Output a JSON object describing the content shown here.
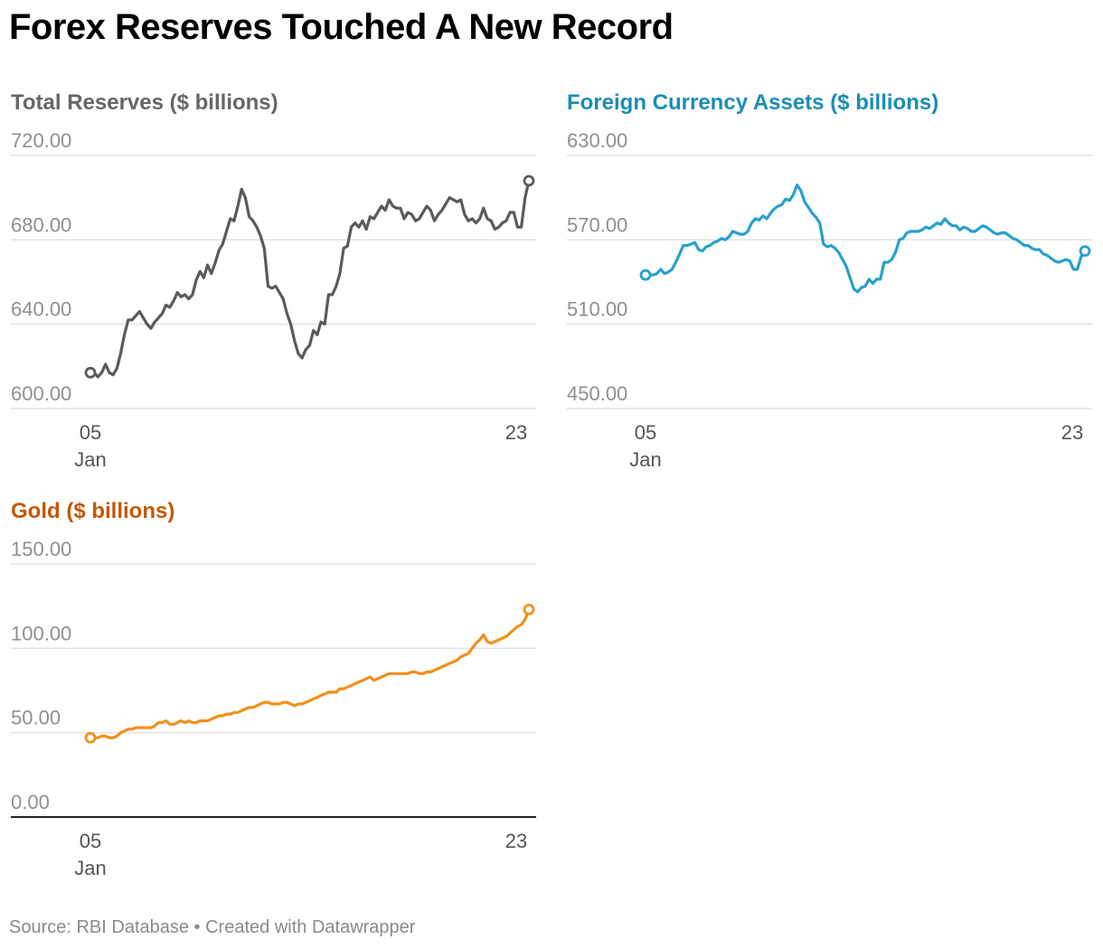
{
  "title": "Forex Reserves Touched A New Record",
  "source": "Source: RBI Database • Created with Datawrapper",
  "chart_data": [
    {
      "type": "line",
      "title": "Total Reserves ($ billions)",
      "color": "#5a5a5a",
      "title_color": "#666666",
      "x_tick_labels": [
        "05",
        "23"
      ],
      "x_tick_sublabels": [
        "Jan",
        ""
      ],
      "y_ticks": [
        600,
        640,
        680,
        720
      ],
      "y_tick_labels": [
        "600.00",
        "640.00",
        "680.00",
        "720.00"
      ],
      "ylim": [
        600,
        720
      ],
      "baseline": "grid",
      "values": [
        617,
        617,
        615,
        617,
        621,
        617,
        616,
        619,
        626,
        635,
        642,
        642,
        644,
        646,
        643,
        640,
        638,
        641,
        643,
        645,
        649,
        648,
        651,
        655,
        653,
        654,
        652,
        654,
        661,
        665,
        662,
        668,
        664,
        669,
        675,
        678,
        684,
        690,
        689,
        696,
        704,
        700,
        691,
        689,
        686,
        682,
        676,
        658,
        657,
        658,
        655,
        652,
        645,
        640,
        632,
        626,
        624,
        628,
        630,
        637,
        635,
        641,
        640,
        654,
        654,
        658,
        664,
        676,
        677,
        686,
        688,
        686,
        689,
        685,
        691,
        690,
        693,
        696,
        694,
        699,
        696,
        695,
        695,
        690,
        693,
        692,
        689,
        690,
        693,
        696,
        694,
        689,
        692,
        694,
        697,
        700,
        699,
        698,
        699,
        692,
        689,
        690,
        688,
        690,
        695,
        690,
        689,
        685,
        686,
        688,
        689,
        693,
        693,
        686,
        686,
        700,
        708
      ]
    },
    {
      "type": "line",
      "title": "Foreign Currency Assets ($ billions)",
      "color": "#27a0cc",
      "title_color": "#1a8db3",
      "x_tick_labels": [
        "05",
        "23"
      ],
      "x_tick_sublabels": [
        "Jan",
        ""
      ],
      "y_ticks": [
        450,
        510,
        570,
        630
      ],
      "y_tick_labels": [
        "450.00",
        "510.00",
        "570.00",
        "630.00"
      ],
      "ylim": [
        450,
        630
      ],
      "baseline": "grid",
      "values": [
        545,
        545,
        545,
        546,
        549,
        546,
        547,
        549,
        554,
        560,
        566,
        566,
        567,
        568,
        563,
        562,
        565,
        566,
        568,
        569,
        571,
        570,
        572,
        576,
        575,
        574,
        574,
        576,
        582,
        585,
        584,
        587,
        585,
        589,
        592,
        594,
        595,
        599,
        598,
        602,
        609,
        605,
        597,
        593,
        589,
        586,
        582,
        567,
        565,
        566,
        564,
        561,
        556,
        551,
        543,
        535,
        533,
        536,
        537,
        542,
        539,
        542,
        542,
        554,
        554,
        556,
        561,
        570,
        571,
        575,
        576,
        576,
        576,
        577,
        579,
        578,
        580,
        582,
        581,
        585,
        582,
        580,
        580,
        577,
        579,
        578,
        576,
        576,
        578,
        580,
        579,
        577,
        575,
        574,
        575,
        575,
        573,
        571,
        570,
        568,
        566,
        566,
        564,
        563,
        563,
        560,
        559,
        557,
        555,
        554,
        555,
        556,
        555,
        549,
        549,
        558,
        562
      ]
    },
    {
      "type": "line",
      "title": "Gold ($ billions)",
      "color": "#f0901c",
      "title_color": "#c2580a",
      "x_tick_labels": [
        "05",
        "23"
      ],
      "x_tick_sublabels": [
        "Jan",
        ""
      ],
      "y_ticks": [
        0,
        50,
        100,
        150
      ],
      "y_tick_labels": [
        "0.00",
        "50.00",
        "100.00",
        "150.00"
      ],
      "ylim": [
        0,
        150
      ],
      "baseline": "axis",
      "values": [
        47,
        47,
        47,
        48,
        48,
        47,
        47,
        48,
        50,
        51,
        52,
        52,
        53,
        53,
        53,
        53,
        53,
        54,
        56,
        56,
        57,
        55,
        55,
        56,
        57,
        56,
        57,
        56,
        56,
        57,
        57,
        57,
        58,
        59,
        60,
        60,
        61,
        61,
        62,
        62,
        63,
        64,
        65,
        65,
        66,
        67,
        68,
        68,
        67,
        67,
        67,
        68,
        68,
        67,
        66,
        67,
        67,
        68,
        69,
        70,
        71,
        72,
        73,
        74,
        74,
        74,
        76,
        76,
        77,
        78,
        79,
        80,
        81,
        82,
        83,
        81,
        82,
        83,
        84,
        85,
        85,
        85,
        85,
        85,
        85,
        86,
        86,
        85,
        85,
        86,
        86,
        87,
        88,
        89,
        90,
        91,
        92,
        93,
        95,
        96,
        97,
        100,
        103,
        105,
        108,
        104,
        103,
        104,
        105,
        106,
        107,
        109,
        111,
        113,
        114,
        117,
        123
      ]
    }
  ]
}
